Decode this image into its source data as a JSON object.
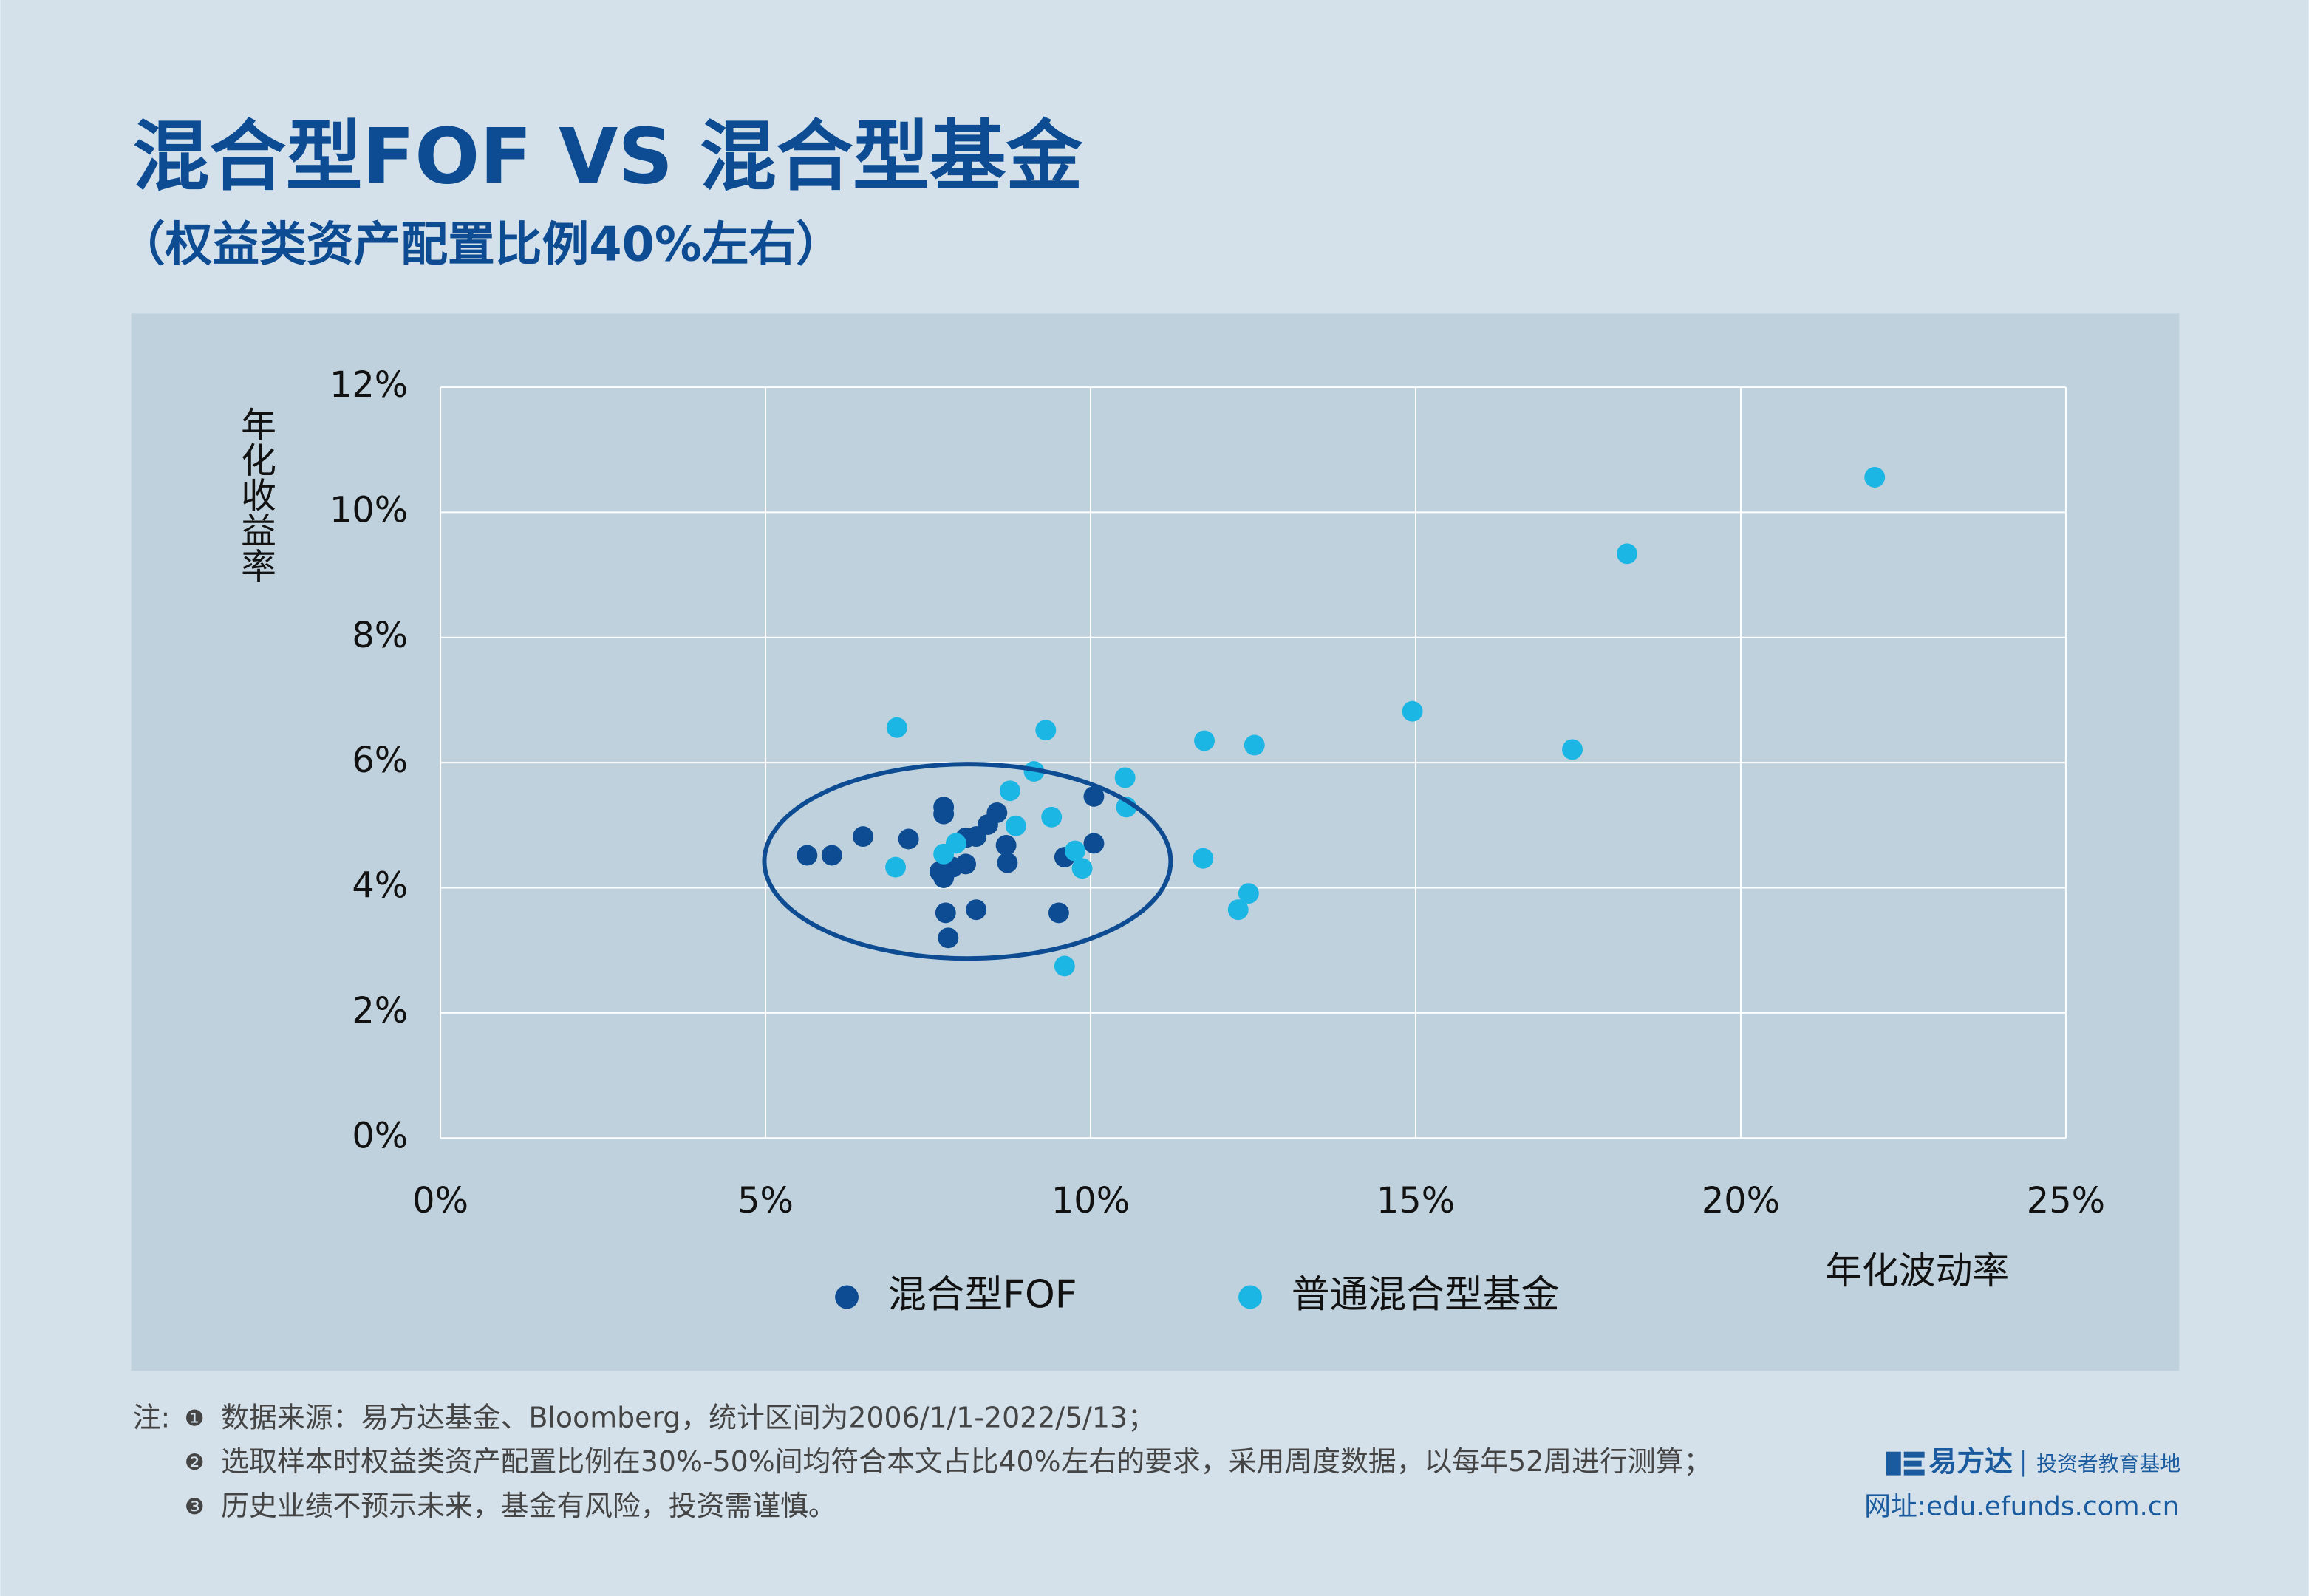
{
  "chart_data": {
    "type": "scatter",
    "title": "混合型FOF VS 混合型基金",
    "subtitle": "（权益类资产配置比例40%左右）",
    "x_label": "年化波动率",
    "y_label": "年化收益率",
    "xlim": [
      0,
      25
    ],
    "xticks": [
      {
        "value": 0,
        "label": "0%"
      },
      {
        "value": 5,
        "label": "5%"
      },
      {
        "value": 10,
        "label": "10%"
      },
      {
        "value": 15,
        "label": "15%"
      },
      {
        "value": 20,
        "label": "20%"
      },
      {
        "value": 25,
        "label": "25%"
      }
    ],
    "ylim": [
      0,
      12
    ],
    "yticks": [
      {
        "value": 0,
        "label": "0%"
      },
      {
        "value": 2,
        "label": "2%"
      },
      {
        "value": 4,
        "label": "4%"
      },
      {
        "value": 6,
        "label": "6%"
      },
      {
        "value": 8,
        "label": "8%"
      },
      {
        "value": 10,
        "label": "10%"
      },
      {
        "value": 12,
        "label": "12%"
      }
    ],
    "grid": true,
    "legend": "bottom",
    "series": [
      {
        "name": "混合型FOF",
        "color": "#0d4c92",
        "x": [
          5.64,
          6.02,
          6.5,
          7.2,
          7.74,
          7.74,
          7.68,
          7.74,
          7.88,
          8.08,
          7.77,
          7.81,
          8.24,
          8.08,
          8.24,
          8.42,
          8.56,
          8.7,
          8.72,
          9.51,
          9.6,
          10.05,
          10.05
        ],
        "values": [
          4.52,
          4.52,
          4.82,
          4.78,
          5.29,
          5.18,
          4.26,
          4.16,
          4.33,
          4.38,
          3.6,
          3.2,
          3.65,
          4.8,
          4.82,
          5.01,
          5.2,
          4.68,
          4.4,
          3.6,
          4.49,
          5.46,
          4.71
        ]
      },
      {
        "name": "普通混合型基金",
        "color": "#1cb6e4",
        "x": [
          7.02,
          7.0,
          7.74,
          7.93,
          9.31,
          9.13,
          8.76,
          8.85,
          9.4,
          9.76,
          9.87,
          10.53,
          10.55,
          9.6,
          11.75,
          12.52,
          11.73,
          12.43,
          12.27,
          14.95,
          17.41,
          18.25,
          22.06
        ],
        "values": [
          6.56,
          4.33,
          4.54,
          4.71,
          6.52,
          5.86,
          5.55,
          4.99,
          5.13,
          4.59,
          4.31,
          5.76,
          5.29,
          2.75,
          6.35,
          6.28,
          4.47,
          3.91,
          3.65,
          6.82,
          6.21,
          9.34,
          10.56
        ]
      }
    ]
  },
  "notes": {
    "label": "注:",
    "markers": [
      "❶",
      "❷",
      "❸"
    ],
    "items": [
      "数据来源：易方达基金、Bloomberg，统计区间为2006/1/1-2022/5/13；",
      "选取样本时权益类资产配置比例在30%-50%间均符合本文占比40%左右的要求，采用周度数据，以每年52周进行测算；",
      "历史业绩不预示未来，基金有风险，投资需谨慎。"
    ]
  },
  "brand": {
    "name": "易方达",
    "slogan": "投资者教育基地",
    "website": "网址:edu.efunds.com.cn"
  }
}
